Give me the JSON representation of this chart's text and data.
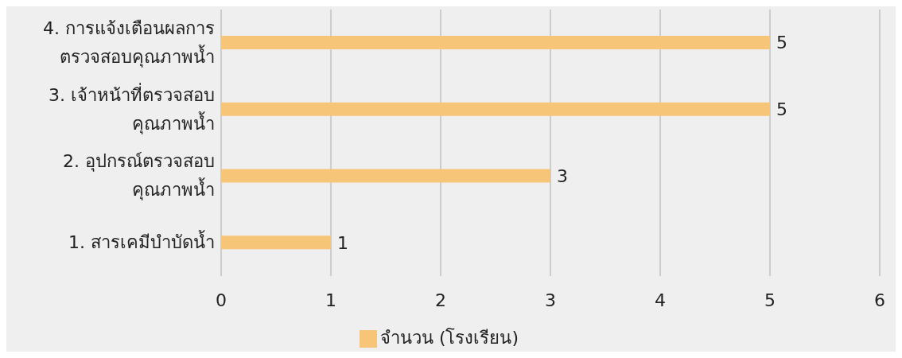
{
  "chart_data": {
    "type": "bar",
    "orientation": "horizontal",
    "categories": [
      "4. การแจ้งเตือนผลการ\nตรวจสอบคุณภาพน้ำ",
      "3. เจ้าหน้าที่ตรวจสอบ\nคุณภาพน้ำ",
      "2. อุปกรณ์ตรวจสอบ\nคุณภาพน้ำ",
      "1. สารเคมีบำบัดน้ำ"
    ],
    "series": [
      {
        "name": "จำนวน (โรงเรียน)",
        "color": "#f7c577",
        "values": [
          5,
          5,
          3,
          1
        ]
      }
    ],
    "xlim": [
      0,
      6
    ],
    "xticks": [
      0,
      1,
      2,
      3,
      4,
      5,
      6
    ],
    "grid": "x",
    "legend": "bottom",
    "data_labels": true
  }
}
